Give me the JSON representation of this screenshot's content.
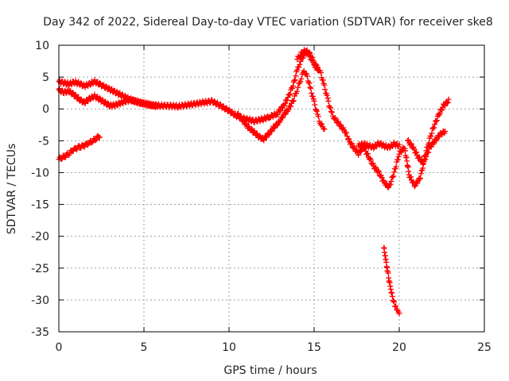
{
  "chart_data": {
    "type": "scatter",
    "title": "Day 342 of 2022, Sidereal Day-to-day VTEC variation (SDTVAR) for receiver ske8",
    "xlabel": "GPS time / hours",
    "ylabel": "SDTVAR / TECUs",
    "xlim": [
      0,
      25
    ],
    "ylim": [
      -35,
      10
    ],
    "xticks": [
      0,
      5,
      10,
      15,
      20,
      25
    ],
    "yticks": [
      -35,
      -30,
      -25,
      -20,
      -15,
      -10,
      -5,
      0,
      5,
      10
    ],
    "grid": true,
    "marker": "+",
    "color": "#ff0000",
    "series": [
      {
        "name": "SDTVAR",
        "segments": [
          {
            "x": [
              0.0,
              0.3,
              0.6,
              0.9,
              1.2,
              1.5,
              1.8,
              2.1,
              2.4,
              2.6,
              2.9,
              3.2,
              3.5,
              3.8,
              4.1,
              4.4,
              4.7,
              5.0,
              5.5,
              6.0,
              6.5,
              7.0,
              7.5,
              8.0,
              8.5,
              9.0,
              9.5,
              10.0,
              10.5,
              11.0,
              11.5,
              12.0,
              12.4,
              12.8,
              13.2,
              13.5,
              13.8,
              14.0,
              14.2,
              14.4,
              14.6,
              14.8,
              15.0,
              15.2
            ],
            "y": [
              4.3,
              4.1,
              3.9,
              4.2,
              4.0,
              3.6,
              3.9,
              4.3,
              3.9,
              3.6,
              3.2,
              2.8,
              2.4,
              2.0,
              1.6,
              1.3,
              1.0,
              0.8,
              0.6,
              0.5,
              0.5,
              0.4,
              0.6,
              0.8,
              1.0,
              1.2,
              0.5,
              -0.3,
              -1.2,
              -1.6,
              -1.9,
              -1.6,
              -1.2,
              -0.8,
              0.5,
              2.0,
              4.0,
              6.0,
              7.5,
              8.5,
              9.0,
              8.0,
              7.0,
              6.0
            ]
          },
          {
            "x": [
              0.0,
              0.3,
              0.6,
              0.9,
              1.2,
              1.5,
              1.8,
              2.1,
              2.4,
              2.7,
              3.0,
              3.3,
              3.6,
              3.9,
              4.2,
              4.5,
              4.8,
              5.1,
              5.4,
              5.8
            ],
            "y": [
              3.0,
              2.6,
              2.8,
              2.2,
              1.5,
              1.0,
              1.6,
              2.0,
              1.5,
              1.0,
              0.5,
              0.6,
              0.9,
              1.2,
              1.4,
              1.2,
              1.0,
              0.8,
              0.6,
              0.4
            ]
          },
          {
            "x": [
              0.0,
              0.2,
              0.4,
              0.6,
              0.8,
              1.0,
              1.2,
              1.4,
              1.6,
              1.8,
              2.0,
              2.2,
              2.4
            ],
            "y": [
              -7.9,
              -7.6,
              -7.3,
              -7.0,
              -6.5,
              -6.2,
              -6.0,
              -5.9,
              -5.6,
              -5.3,
              -5.0,
              -4.6,
              -4.2
            ]
          },
          {
            "x": [
              10.5,
              10.8,
              11.1,
              11.4,
              11.7,
              12.0,
              12.3,
              12.6,
              12.9,
              13.2,
              13.5,
              13.8,
              14.0,
              14.2,
              14.4,
              14.6,
              14.8,
              15.0,
              15.2,
              15.4,
              15.6
            ],
            "y": [
              -0.8,
              -1.8,
              -2.8,
              -3.5,
              -4.2,
              -4.8,
              -4.0,
              -3.0,
              -2.2,
              -1.0,
              0.0,
              1.5,
              3.0,
              4.5,
              6.0,
              5.0,
              3.0,
              1.0,
              -1.0,
              -2.5,
              -3.0
            ]
          },
          {
            "x": [
              14.0,
              14.2,
              14.5,
              14.8,
              15.0,
              15.2,
              15.4,
              15.6,
              15.8,
              16.0,
              16.2,
              16.5,
              16.8,
              17.0
            ],
            "y": [
              7.8,
              8.6,
              9.2,
              8.5,
              7.2,
              6.5,
              5.5,
              3.5,
              1.5,
              -0.5,
              -1.5,
              -2.5,
              -3.5,
              -4.5
            ]
          },
          {
            "x": [
              17.0,
              17.3,
              17.6,
              17.9,
              18.2,
              18.5,
              18.8,
              19.1,
              19.4,
              19.7,
              20.0,
              20.3,
              20.6,
              20.9,
              21.2,
              21.5,
              21.8,
              22.1,
              22.4,
              22.7
            ],
            "y": [
              -4.8,
              -6.0,
              -7.0,
              -6.0,
              -7.5,
              -9.0,
              -10.0,
              -11.5,
              -12.3,
              -10.0,
              -7.0,
              -6.0,
              -10.5,
              -12.0,
              -11.0,
              -8.0,
              -6.0,
              -5.0,
              -4.0,
              -3.5
            ]
          },
          {
            "x": [
              17.6,
              17.9,
              18.2,
              18.5,
              18.8,
              19.1,
              19.4,
              19.7,
              20.0
            ],
            "y": [
              -5.8,
              -5.5,
              -5.8,
              -6.0,
              -5.4,
              -5.8,
              -6.0,
              -5.5,
              -5.8
            ]
          },
          {
            "x": [
              20.5,
              20.8,
              21.1,
              21.4,
              21.7,
              22.0,
              22.3,
              22.6,
              22.9
            ],
            "y": [
              -5.0,
              -6.0,
              -7.5,
              -8.5,
              -5.5,
              -3.0,
              -1.0,
              0.5,
              1.3
            ]
          },
          {
            "x": [
              19.1,
              19.2,
              19.3,
              19.4,
              19.5,
              19.6,
              19.7,
              19.8,
              19.9,
              20.0
            ],
            "y": [
              -21.8,
              -23.5,
              -25.2,
              -26.8,
              -28.2,
              -29.5,
              -30.5,
              -31.2,
              -31.8,
              -32.2
            ]
          }
        ]
      }
    ]
  }
}
